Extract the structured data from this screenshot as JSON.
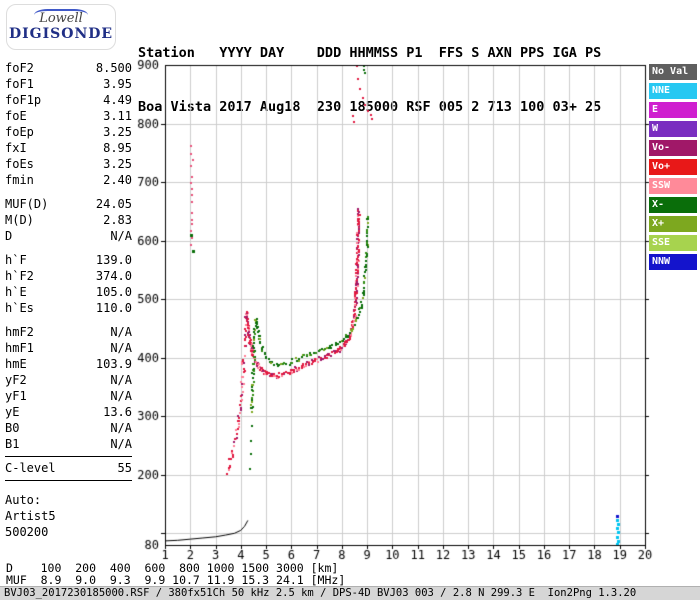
{
  "logo": {
    "line1": "Lowell",
    "line2": "DIGISONDE"
  },
  "header": {
    "row1": "Station   YYYY DAY    DDD HHMMSS P1  FFS S AXN PPS IGA PS",
    "row2": "Boa Vista 2017 Aug18  230 185000 RSF 005 2 713 100 03+ 25"
  },
  "parameters": [
    {
      "label": "foF2",
      "value": "8.500"
    },
    {
      "label": "foF1",
      "value": "3.95"
    },
    {
      "label": "foF1p",
      "value": "4.49"
    },
    {
      "label": "foE",
      "value": "3.11"
    },
    {
      "label": "foEp",
      "value": "3.25"
    },
    {
      "label": "fxI",
      "value": "8.95"
    },
    {
      "label": "foEs",
      "value": "3.25"
    },
    {
      "label": "fmin",
      "value": "2.40"
    },
    {
      "type": "gap"
    },
    {
      "label": "MUF(D)",
      "value": "24.05"
    },
    {
      "label": "M(D)",
      "value": "2.83"
    },
    {
      "label": "D",
      "value": "N/A"
    },
    {
      "type": "gap"
    },
    {
      "label": "h`F",
      "value": "139.0"
    },
    {
      "label": "h`F2",
      "value": "374.0"
    },
    {
      "label": "h`E",
      "value": "105.0"
    },
    {
      "label": "h`Es",
      "value": "110.0"
    },
    {
      "type": "gap"
    },
    {
      "label": "hmF2",
      "value": "N/A"
    },
    {
      "label": "hmF1",
      "value": "N/A"
    },
    {
      "label": "hmE",
      "value": "103.9"
    },
    {
      "label": "yF2",
      "value": "N/A"
    },
    {
      "label": "yF1",
      "value": "N/A"
    },
    {
      "label": "yE",
      "value": "13.6"
    },
    {
      "label": "B0",
      "value": "N/A"
    },
    {
      "label": "B1",
      "value": "N/A"
    },
    {
      "type": "rule"
    },
    {
      "label": "C-level",
      "value": "55"
    },
    {
      "type": "rule"
    },
    {
      "type": "gap"
    },
    {
      "label": "Auto:",
      "value": ""
    },
    {
      "label": "Artist5",
      "value": ""
    },
    {
      "label": "500200",
      "value": ""
    }
  ],
  "legend": {
    "items": [
      {
        "label": "No Val",
        "color": "#5f5f5f"
      },
      {
        "label": "NNE",
        "color": "#27c8f2"
      },
      {
        "label": "E",
        "color": "#cf1fcf"
      },
      {
        "label": "W",
        "color": "#7a2ec0"
      },
      {
        "label": "Vo-",
        "color": "#a01868"
      },
      {
        "label": "Vo+",
        "color": "#e81818"
      },
      {
        "label": "SSW",
        "color": "#ff8a99"
      },
      {
        "label": "X-",
        "color": "#0a6e0a"
      },
      {
        "label": "X+",
        "color": "#7da81f"
      },
      {
        "label": "SSE",
        "color": "#a7d34e"
      },
      {
        "label": "NNW",
        "color": "#1414cc"
      }
    ]
  },
  "muf_table": {
    "rows": [
      {
        "label": "D",
        "values": [
          "100",
          "200",
          "400",
          "600",
          "800",
          "1000",
          "1500",
          "3000"
        ],
        "unit": "[km]"
      },
      {
        "label": "MUF",
        "values": [
          "8.9",
          "9.0",
          "9.3",
          "9.9",
          "10.7",
          "11.9",
          "15.3",
          "24.1"
        ],
        "unit": "[MHz]"
      }
    ]
  },
  "statusbar": {
    "text": "BVJ03_2017230185000.RSF / 380fx51Ch 50 kHz 2.5 km / DPS-4D BVJ03 003 / 2.8 N 299.3 E  Ion2Png 1.3.20"
  },
  "chart_data": {
    "type": "scatter",
    "title": "",
    "xlabel": "",
    "ylabel": "",
    "xlim": [
      1,
      20
    ],
    "ylim": [
      80,
      900
    ],
    "x_ticks": [
      1,
      2,
      3,
      4,
      5,
      6,
      7,
      8,
      9,
      10,
      11,
      12,
      13,
      14,
      15,
      16,
      17,
      18,
      19,
      20
    ],
    "y_grid": [
      100,
      200,
      300,
      400,
      500,
      600,
      700,
      800
    ],
    "y_ticks": [
      [
        900,
        "900"
      ],
      [
        800,
        "800"
      ],
      [
        700,
        "700"
      ],
      [
        600,
        "600"
      ],
      [
        500,
        "500"
      ],
      [
        400,
        "400"
      ],
      [
        300,
        "300"
      ],
      [
        200,
        "200"
      ],
      [
        80,
        "80"
      ]
    ],
    "grid_on": true,
    "grid_color": "#cccccc",
    "legend_position": "right",
    "series": [
      {
        "name": "o-trace-rising",
        "type": "dense",
        "color": "#e01840",
        "mix": [
          "#ff7f95",
          "#a01868"
        ],
        "size": 2,
        "jx": 1.6,
        "jy": 4.5,
        "step": 3,
        "per": 1,
        "seed": 11,
        "points": [
          [
            3.42,
            205
          ],
          [
            3.52,
            220
          ],
          [
            3.62,
            236
          ],
          [
            3.72,
            252
          ],
          [
            3.8,
            268
          ],
          [
            3.88,
            292
          ],
          [
            3.96,
            320
          ],
          [
            4.03,
            355
          ],
          [
            4.09,
            395
          ],
          [
            4.14,
            435
          ],
          [
            4.19,
            465
          ],
          [
            4.22,
            480
          ]
        ]
      },
      {
        "name": "o-trace-main",
        "type": "dense",
        "color": "#e01840",
        "mix": [
          "#ff7f95",
          "#a01868"
        ],
        "size": 2,
        "jx": 1.2,
        "jy": 2.4,
        "step": 2,
        "per": 2,
        "seed": 21,
        "points": [
          [
            4.22,
            478
          ],
          [
            4.27,
            450
          ],
          [
            4.33,
            428
          ],
          [
            4.41,
            412
          ],
          [
            4.51,
            399
          ],
          [
            4.63,
            389
          ],
          [
            4.79,
            381
          ],
          [
            4.96,
            375
          ],
          [
            5.16,
            371
          ],
          [
            5.42,
            370
          ],
          [
            5.66,
            373
          ],
          [
            5.92,
            377
          ],
          [
            6.17,
            382
          ],
          [
            6.42,
            388
          ],
          [
            6.67,
            393
          ],
          [
            6.92,
            397
          ],
          [
            7.17,
            401
          ],
          [
            7.42,
            405
          ],
          [
            7.67,
            410
          ],
          [
            7.92,
            417
          ],
          [
            8.1,
            426
          ],
          [
            8.25,
            437
          ],
          [
            8.36,
            450
          ],
          [
            8.46,
            470
          ],
          [
            8.51,
            495
          ],
          [
            8.55,
            530
          ],
          [
            8.58,
            570
          ],
          [
            8.61,
            615
          ],
          [
            8.63,
            655
          ]
        ]
      },
      {
        "name": "x-trace-main",
        "type": "dense",
        "color": "#0a6e0a",
        "mix": [
          "#7da81f",
          "#2f8c12"
        ],
        "size": 2,
        "jx": 1.2,
        "jy": 2.0,
        "step": 2.5,
        "per": 1,
        "seed": 31,
        "points": [
          [
            4.38,
            310
          ],
          [
            4.45,
            380
          ],
          [
            4.51,
            440
          ],
          [
            4.57,
            468
          ],
          [
            4.63,
            450
          ],
          [
            4.72,
            430
          ],
          [
            4.83,
            414
          ],
          [
            4.98,
            401
          ],
          [
            5.18,
            392
          ],
          [
            5.44,
            388
          ],
          [
            5.7,
            390
          ],
          [
            5.96,
            394
          ],
          [
            6.21,
            399
          ],
          [
            6.46,
            404
          ],
          [
            6.71,
            408
          ],
          [
            6.96,
            412
          ],
          [
            7.21,
            415
          ],
          [
            7.46,
            419
          ],
          [
            7.71,
            424
          ],
          [
            7.96,
            430
          ],
          [
            8.16,
            438
          ],
          [
            8.36,
            450
          ],
          [
            8.56,
            466
          ],
          [
            8.71,
            486
          ],
          [
            8.83,
            515
          ],
          [
            8.91,
            555
          ],
          [
            8.97,
            600
          ],
          [
            9.01,
            645
          ]
        ]
      },
      {
        "name": "x-trace-low-dots",
        "type": "scatter",
        "color": "#0a6e0a",
        "size": 2,
        "jx": 1,
        "jy": 2,
        "seed": 41,
        "points": [
          [
            4.31,
            212
          ],
          [
            4.36,
            238
          ],
          [
            4.33,
            260
          ],
          [
            4.39,
            284
          ],
          [
            4.42,
            318
          ],
          [
            4.37,
            345
          ]
        ]
      },
      {
        "name": "spread-f-strip",
        "type": "scatter",
        "color": "#e8507a",
        "size": 2,
        "jx": 0.8,
        "jy": 2,
        "seed": 51,
        "points": [
          [
            2.0,
            592
          ],
          [
            2.04,
            604
          ],
          [
            2.0,
            616
          ],
          [
            2.05,
            628
          ],
          [
            2.01,
            640
          ],
          [
            2.04,
            652
          ],
          [
            2.0,
            664
          ],
          [
            2.05,
            678
          ],
          [
            2.02,
            690
          ],
          [
            2.0,
            702
          ],
          [
            2.04,
            714
          ],
          [
            2.01,
            726
          ],
          [
            2.05,
            740
          ],
          [
            2.0,
            752
          ],
          [
            2.03,
            762
          ]
        ]
      },
      {
        "name": "spread-f-green-dots",
        "type": "scatter",
        "color": "#0a6e0a",
        "size": 3,
        "jx": 0.5,
        "jy": 0.5,
        "seed": 61,
        "points": [
          [
            1.97,
            612
          ],
          [
            2.04,
            585
          ]
        ]
      },
      {
        "name": "second-hop-o",
        "type": "scatter",
        "color": "#e01840",
        "size": 2,
        "jx": 1,
        "jy": 1.5,
        "seed": 71,
        "points": [
          [
            8.4,
            812
          ],
          [
            8.44,
            806
          ],
          [
            8.56,
            898
          ],
          [
            8.63,
            878
          ],
          [
            8.7,
            860
          ],
          [
            8.77,
            846
          ],
          [
            8.86,
            834
          ],
          [
            8.96,
            824
          ],
          [
            9.06,
            816
          ],
          [
            9.16,
            810
          ]
        ]
      },
      {
        "name": "second-hop-x",
        "type": "scatter",
        "color": "#0a6e0a",
        "size": 2,
        "jx": 1,
        "jy": 1.5,
        "seed": 81,
        "points": [
          [
            8.8,
            899
          ],
          [
            8.86,
            893
          ],
          [
            8.92,
            886
          ]
        ]
      },
      {
        "name": "e-layer-baseline",
        "type": "line",
        "color": "#000000",
        "width": 1,
        "points": [
          [
            1.0,
            87
          ],
          [
            1.5,
            88
          ],
          [
            2.0,
            90
          ],
          [
            2.5,
            92
          ],
          [
            3.0,
            94
          ],
          [
            3.4,
            97
          ],
          [
            3.75,
            100
          ],
          [
            4.0,
            105
          ],
          [
            4.15,
            112
          ],
          [
            4.28,
            122
          ]
        ]
      },
      {
        "name": "es-layer-cyan",
        "type": "scatter",
        "color": "#00c5f0",
        "size": 3,
        "jx": 0.4,
        "jy": 0.6,
        "seed": 91,
        "points": [
          [
            18.85,
            82
          ],
          [
            18.88,
            89
          ],
          [
            18.84,
            96
          ],
          [
            18.88,
            103
          ],
          [
            18.84,
            110
          ],
          [
            18.88,
            117
          ],
          [
            18.86,
            124
          ]
        ]
      },
      {
        "name": "es-layer-blue-dot",
        "type": "scatter",
        "color": "#1414cc",
        "size": 3,
        "jx": 0,
        "jy": 0,
        "seed": 92,
        "points": [
          [
            18.86,
            132
          ]
        ]
      }
    ]
  }
}
